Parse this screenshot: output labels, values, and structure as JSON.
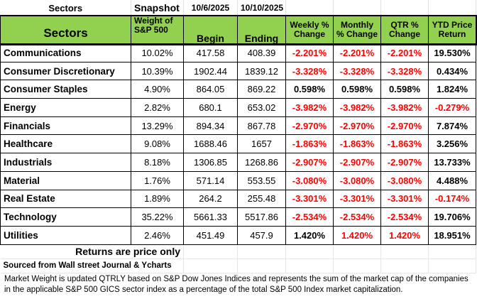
{
  "top": {
    "title": "Sectors",
    "snapshot": "Snapshot",
    "begin_date": "10/6/2025",
    "end_date": "10/10/2025"
  },
  "header": {
    "sectors": "Sectors",
    "weight": "Weight of S&P 500",
    "begin": "Begin",
    "ending": "Ending",
    "weekly": "Weekly % Change",
    "monthly": "Monthly % Change",
    "qtr": "QTR % Change",
    "ytd": "YTD Price Return"
  },
  "colors": {
    "header_bg": "#92d050",
    "negative": "#ff0000"
  },
  "rows": [
    {
      "sector": "Communications",
      "weight": "10.02%",
      "begin": "417.58",
      "ending": "408.39",
      "weekly": "-2.201%",
      "monthly": "-2.201%",
      "qtr": "-2.201%",
      "ytd": "19.530%",
      "red": [
        "weekly",
        "monthly",
        "qtr"
      ]
    },
    {
      "sector": "Consumer Discretionary",
      "weight": "10.39%",
      "begin": "1902.44",
      "ending": "1839.12",
      "weekly": "-3.328%",
      "monthly": "-3.328%",
      "qtr": "-3.328%",
      "ytd": "0.434%",
      "red": [
        "weekly",
        "monthly",
        "qtr"
      ]
    },
    {
      "sector": "Consumer Staples",
      "weight": "4.90%",
      "begin": "864.05",
      "ending": "869.22",
      "weekly": "0.598%",
      "monthly": "0.598%",
      "qtr": "0.598%",
      "ytd": "1.824%",
      "red": []
    },
    {
      "sector": "Energy",
      "weight": "2.82%",
      "begin": "680.1",
      "ending": "653.02",
      "weekly": "-3.982%",
      "monthly": "-3.982%",
      "qtr": "-3.982%",
      "ytd": "-0.279%",
      "red": [
        "weekly",
        "monthly",
        "qtr",
        "ytd"
      ]
    },
    {
      "sector": "Financials",
      "weight": "13.29%",
      "begin": "894.34",
      "ending": "867.78",
      "weekly": "-2.970%",
      "monthly": "-2.970%",
      "qtr": "-2.970%",
      "ytd": "7.874%",
      "red": [
        "weekly",
        "monthly",
        "qtr"
      ]
    },
    {
      "sector": "Healthcare",
      "weight": "9.08%",
      "begin": "1688.46",
      "ending": "1657",
      "weekly": "-1.863%",
      "monthly": "-1.863%",
      "qtr": "-1.863%",
      "ytd": "3.256%",
      "red": [
        "weekly",
        "monthly",
        "qtr"
      ]
    },
    {
      "sector": "Industrials",
      "weight": "8.18%",
      "begin": "1306.85",
      "ending": "1268.86",
      "weekly": "-2.907%",
      "monthly": "-2.907%",
      "qtr": "-2.907%",
      "ytd": "13.733%",
      "red": [
        "weekly",
        "monthly",
        "qtr"
      ]
    },
    {
      "sector": "Material",
      "weight": "1.76%",
      "begin": "571.14",
      "ending": "553.55",
      "weekly": "-3.080%",
      "monthly": "-3.080%",
      "qtr": "-3.080%",
      "ytd": "4.488%",
      "red": [
        "weekly",
        "monthly",
        "qtr"
      ]
    },
    {
      "sector": "Real Estate",
      "weight": "1.89%",
      "begin": "264.2",
      "ending": "255.48",
      "weekly": "-3.301%",
      "monthly": "-3.301%",
      "qtr": "-3.301%",
      "ytd": "-0.174%",
      "red": [
        "weekly",
        "monthly",
        "qtr",
        "ytd"
      ]
    },
    {
      "sector": "Technology",
      "weight": "35.22%",
      "begin": "5661.33",
      "ending": "5517.86",
      "weekly": "-2.534%",
      "monthly": "-2.534%",
      "qtr": "-2.534%",
      "ytd": "19.706%",
      "red": [
        "weekly",
        "monthly",
        "qtr"
      ]
    },
    {
      "sector": "Utilities",
      "weight": "2.46%",
      "begin": "451.49",
      "ending": "457.9",
      "weekly": "1.420%",
      "monthly": "1.420%",
      "qtr": "1.420%",
      "ytd": "18.951%",
      "red": [
        "monthly",
        "qtr"
      ]
    }
  ],
  "footer": {
    "returns_note": "Returns are price only",
    "source": "Sourced from Wall street Journal & Ycharts",
    "market_weight_note": "Market Weight is updated QTRLY based on S&P Dow Jones Indices and represents the sum of the market cap of the companies in the applicable S&P 500 GICS sector index as a percentage of the total S&P 500 Index market capitalization."
  }
}
